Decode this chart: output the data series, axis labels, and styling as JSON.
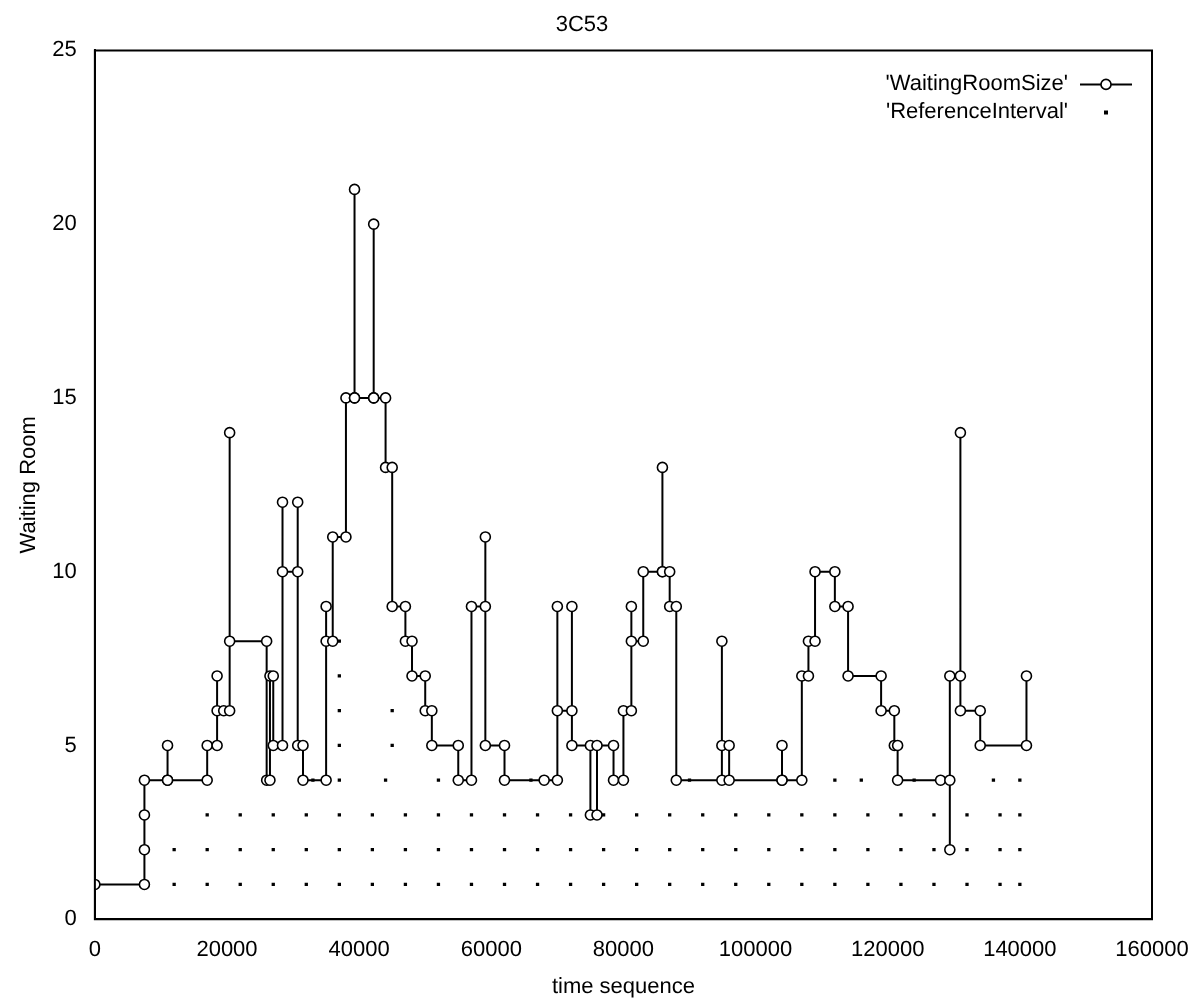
{
  "chart_data": {
    "type": "line",
    "title": "3C53",
    "xlabel": "time sequence",
    "ylabel": "Waiting Room",
    "xlim": [
      0,
      160000
    ],
    "xticks": [
      0,
      20000,
      40000,
      60000,
      80000,
      100000,
      120000,
      140000,
      160000
    ],
    "ylim": [
      0,
      25
    ],
    "yticks": [
      0,
      5,
      10,
      15,
      20,
      25
    ],
    "grid": false,
    "legend": "top right",
    "series": [
      {
        "name": "'WaitingRoomSize'",
        "color": "#000000",
        "marker": "circle",
        "line_style": "solid",
        "x": [
          0,
          7500,
          7500,
          7500,
          7500,
          11000,
          11000,
          11000,
          17000,
          17000,
          18500,
          18500,
          18500,
          19500,
          20400,
          20400,
          20400,
          26000,
          26000,
          26500,
          26500,
          27000,
          27000,
          28400,
          28400,
          28400,
          30700,
          30700,
          30700,
          31500,
          31500,
          35000,
          35000,
          35000,
          36000,
          36000,
          38000,
          38000,
          39300,
          39300,
          39300,
          42200,
          42200,
          42200,
          44000,
          44000,
          45000,
          45000,
          47000,
          47000,
          48000,
          48000,
          50000,
          50000,
          51000,
          51000,
          55000,
          55000,
          57000,
          57000,
          59100,
          59100,
          59100,
          62000,
          62000,
          68000,
          70000,
          70000,
          70000,
          72200,
          72200,
          72200,
          75000,
          75000,
          76000,
          76000,
          78500,
          78500,
          80000,
          80000,
          81200,
          81200,
          81200,
          83000,
          83000,
          85900,
          85900,
          85900,
          87000,
          87000,
          88000,
          88000,
          94900,
          94900,
          94900,
          96000,
          96000,
          104000,
          104000,
          104000,
          107000,
          107000,
          108000,
          108000,
          109000,
          109000,
          112000,
          112000,
          114000,
          114000,
          119000,
          119000,
          121000,
          121000,
          121500,
          121500,
          128000,
          129400,
          129400,
          129400,
          131000,
          131000,
          131000,
          134000,
          134000,
          141000,
          141000
        ],
        "values": [
          1,
          1,
          2,
          3,
          4,
          4,
          5,
          4,
          4,
          5,
          5,
          7,
          6,
          6,
          6,
          14,
          8,
          8,
          4,
          4,
          7,
          7,
          5,
          5,
          12,
          10,
          10,
          12,
          5,
          5,
          4,
          4,
          9,
          8,
          8,
          11,
          11,
          15,
          15,
          21,
          15,
          15,
          20,
          15,
          15,
          13,
          13,
          9,
          9,
          8,
          8,
          7,
          7,
          6,
          6,
          5,
          5,
          4,
          4,
          9,
          9,
          11,
          5,
          5,
          4,
          4,
          4,
          9,
          6,
          6,
          9,
          5,
          5,
          3,
          3,
          5,
          5,
          4,
          4,
          6,
          6,
          9,
          8,
          8,
          10,
          10,
          13,
          10,
          10,
          9,
          9,
          4,
          4,
          8,
          5,
          5,
          4,
          4,
          5,
          4,
          4,
          7,
          7,
          8,
          8,
          10,
          10,
          9,
          9,
          7,
          7,
          6,
          6,
          5,
          5,
          4,
          4,
          4,
          2,
          7,
          7,
          14,
          6,
          6,
          5,
          5,
          7
        ]
      },
      {
        "name": "'ReferenceInterval'",
        "type": "scatter",
        "color": "#000000",
        "marker": "square",
        "x": [
          12000,
          17000,
          22000,
          27000,
          32000,
          37000,
          42000,
          47000,
          52000,
          57000,
          62000,
          67000,
          72000,
          77000,
          82000,
          87000,
          92000,
          97000,
          102000,
          107000,
          112000,
          117000,
          122000,
          127000,
          132000,
          137000,
          140000,
          12000,
          17000,
          22000,
          27000,
          32000,
          37000,
          42000,
          47000,
          52000,
          57000,
          62000,
          67000,
          72000,
          77000,
          82000,
          87000,
          92000,
          97000,
          102000,
          107000,
          112000,
          117000,
          122000,
          127000,
          132000,
          137000,
          140000,
          17000,
          22000,
          27000,
          32000,
          37000,
          42000,
          47000,
          52000,
          57000,
          62000,
          67000,
          72000,
          77000,
          82000,
          87000,
          92000,
          97000,
          102000,
          107000,
          112000,
          117000,
          122000,
          127000,
          132000,
          137000,
          140000,
          33000,
          37000,
          44000,
          52000,
          66000,
          90000,
          112000,
          116000,
          124000,
          136000,
          140000,
          37000,
          37000,
          37000,
          37000,
          45000,
          45000
        ],
        "values": [
          1,
          1,
          1,
          1,
          1,
          1,
          1,
          1,
          1,
          1,
          1,
          1,
          1,
          1,
          1,
          1,
          1,
          1,
          1,
          1,
          1,
          1,
          1,
          1,
          1,
          1,
          1,
          2,
          2,
          2,
          2,
          2,
          2,
          2,
          2,
          2,
          2,
          2,
          2,
          2,
          2,
          2,
          2,
          2,
          2,
          2,
          2,
          2,
          2,
          2,
          2,
          2,
          2,
          2,
          3,
          3,
          3,
          3,
          3,
          3,
          3,
          3,
          3,
          3,
          3,
          3,
          3,
          3,
          3,
          3,
          3,
          3,
          3,
          3,
          3,
          3,
          3,
          3,
          3,
          3,
          4,
          4,
          4,
          4,
          4,
          4,
          4,
          4,
          4,
          4,
          4,
          5,
          6,
          7,
          8,
          5,
          6
        ]
      }
    ]
  }
}
